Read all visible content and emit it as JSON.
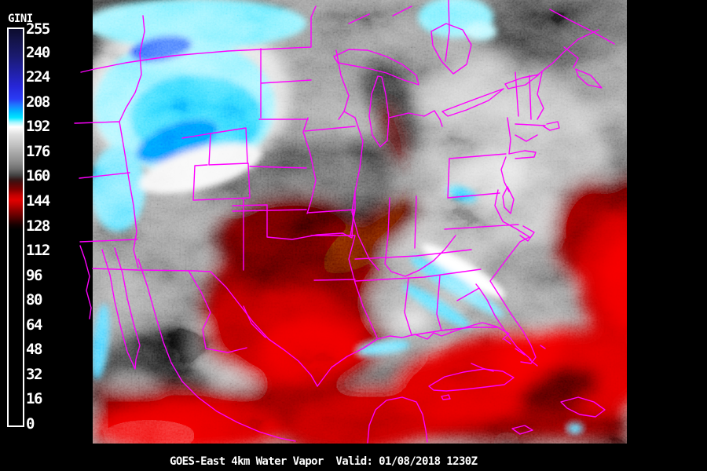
{
  "colorbar": {
    "title": "GINI",
    "min": 0,
    "max": 255,
    "ticks": [
      255,
      240,
      224,
      208,
      192,
      176,
      160,
      144,
      128,
      112,
      96,
      80,
      64,
      48,
      32,
      16,
      0
    ],
    "gradient": [
      {
        "value": 255,
        "color": "#0c0c2e"
      },
      {
        "value": 247,
        "color": "#14144c"
      },
      {
        "value": 238,
        "color": "#1a1a6e"
      },
      {
        "value": 228,
        "color": "#2020a2"
      },
      {
        "value": 218,
        "color": "#2626d8"
      },
      {
        "value": 210,
        "color": "#2a3cf4"
      },
      {
        "value": 206,
        "color": "#1e7aff"
      },
      {
        "value": 202,
        "color": "#00b6ff"
      },
      {
        "value": 198,
        "color": "#00e6ff"
      },
      {
        "value": 195,
        "color": "#a4f6ff"
      },
      {
        "value": 192,
        "color": "#ffffff"
      },
      {
        "value": 187,
        "color": "#dedede"
      },
      {
        "value": 181,
        "color": "#c4c4c4"
      },
      {
        "value": 176,
        "color": "#ababab"
      },
      {
        "value": 170,
        "color": "#8f8f8f"
      },
      {
        "value": 165,
        "color": "#6f6f6f"
      },
      {
        "value": 161,
        "color": "#434343"
      },
      {
        "value": 158,
        "color": "#351616"
      },
      {
        "value": 156,
        "color": "#4c0a0a"
      },
      {
        "value": 152,
        "color": "#7c0000"
      },
      {
        "value": 148,
        "color": "#c40000"
      },
      {
        "value": 145,
        "color": "#e20000"
      },
      {
        "value": 142,
        "color": "#c00000"
      },
      {
        "value": 138,
        "color": "#8a0000"
      },
      {
        "value": 133,
        "color": "#4a0000"
      },
      {
        "value": 129,
        "color": "#140000"
      },
      {
        "value": 126,
        "color": "#000000"
      },
      {
        "value": 0,
        "color": "#000000"
      }
    ]
  },
  "caption": {
    "text": "GOES-East 4km Water Vapor  Valid: 01/08/2018 1230Z"
  },
  "map": {
    "boundary_color": "#ff00ff",
    "background_gray": "#8a8a8a",
    "dry_air_red": "#e00000",
    "high_cloud_cyan": "#00e0ff",
    "deep_cloud_blue": "#2a50ff",
    "cloud_white": "#ffffff",
    "margin_black": "#000000"
  }
}
